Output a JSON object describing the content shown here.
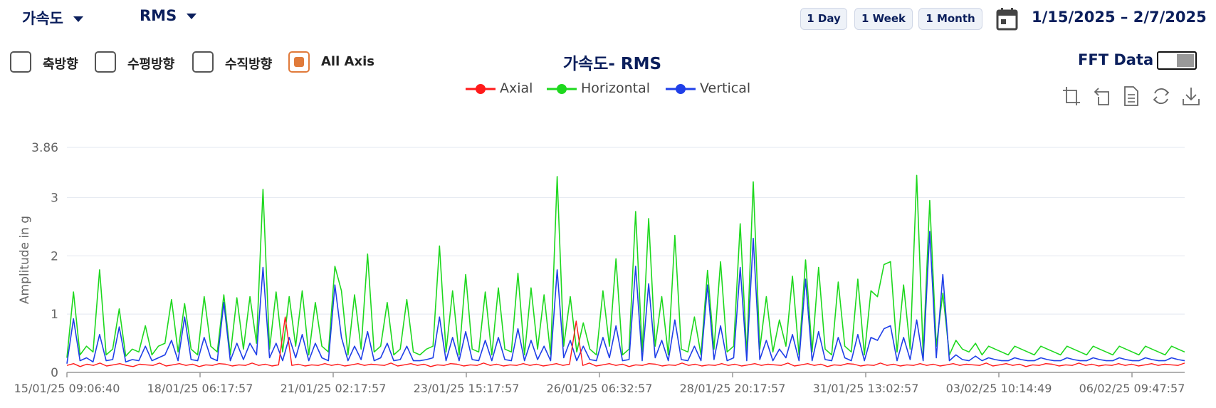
{
  "header": {
    "sensor_dropdown": "가속도",
    "metric_dropdown": "RMS",
    "range_buttons": [
      "1 Day",
      "1 Week",
      "1 Month"
    ],
    "date_range": "1/15/2025 – 2/7/2025"
  },
  "filters": [
    {
      "label": "축방향",
      "checked": false
    },
    {
      "label": "수평방향",
      "checked": false
    },
    {
      "label": "수직방향",
      "checked": false
    },
    {
      "label": "All Axis",
      "checked": true
    }
  ],
  "fft": {
    "label": "FFT Data",
    "enabled": false
  },
  "toolbar_icons": [
    "zoom-in-icon",
    "zoom-reset-icon",
    "data-view-icon",
    "restore-icon",
    "download-icon"
  ],
  "colors": {
    "axial": "#ff1a1a",
    "horizontal": "#1ed81e",
    "vertical": "#1f3fe8",
    "accent": "#e07a3a",
    "navy": "#0b1f5c"
  },
  "chart_data": {
    "type": "line",
    "title": "가속도- RMS",
    "xlabel": "",
    "ylabel": "Amplitude in g",
    "ylim": [
      0,
      3.86
    ],
    "yticks": [
      0,
      1,
      2,
      3,
      3.86
    ],
    "yticklabels": [
      "0",
      "1",
      "2",
      "3",
      "3.86"
    ],
    "xticklabels": [
      "15/01/25 09:06:40",
      "18/01/25 06:17:57",
      "21/01/25 02:17:57",
      "23/01/25 15:17:57",
      "26/01/25 06:32:57",
      "28/01/25 20:17:57",
      "31/01/25 13:02:57",
      "03/02/25 10:14:49",
      "06/02/25 09:47:57"
    ],
    "grid": true,
    "legend_position": "top-center",
    "series": [
      {
        "name": "Axial",
        "values": [
          0.12,
          0.15,
          0.1,
          0.14,
          0.12,
          0.16,
          0.11,
          0.13,
          0.15,
          0.12,
          0.1,
          0.14,
          0.13,
          0.12,
          0.16,
          0.11,
          0.13,
          0.15,
          0.12,
          0.14,
          0.1,
          0.13,
          0.12,
          0.15,
          0.14,
          0.11,
          0.13,
          0.12,
          0.16,
          0.12,
          0.14,
          0.11,
          0.13,
          0.95,
          0.12,
          0.14,
          0.11,
          0.13,
          0.12,
          0.15,
          0.12,
          0.14,
          0.11,
          0.13,
          0.15,
          0.12,
          0.14,
          0.13,
          0.12,
          0.16,
          0.11,
          0.13,
          0.15,
          0.12,
          0.14,
          0.1,
          0.13,
          0.12,
          0.15,
          0.14,
          0.11,
          0.13,
          0.12,
          0.16,
          0.12,
          0.14,
          0.11,
          0.13,
          0.12,
          0.15,
          0.12,
          0.14,
          0.11,
          0.13,
          0.15,
          0.12,
          0.14,
          0.88,
          0.12,
          0.16,
          0.11,
          0.13,
          0.15,
          0.12,
          0.14,
          0.1,
          0.13,
          0.12,
          0.15,
          0.14,
          0.11,
          0.13,
          0.12,
          0.16,
          0.12,
          0.14,
          0.11,
          0.13,
          0.12,
          0.15,
          0.12,
          0.14,
          0.11,
          0.13,
          0.15,
          0.12,
          0.14,
          0.13,
          0.12,
          0.16,
          0.11,
          0.13,
          0.15,
          0.12,
          0.14,
          0.1,
          0.13,
          0.12,
          0.15,
          0.14,
          0.11,
          0.13,
          0.12,
          0.16,
          0.12,
          0.14,
          0.11,
          0.13,
          0.12,
          0.15,
          0.12,
          0.14,
          0.11,
          0.13,
          0.15,
          0.12,
          0.14,
          0.13,
          0.12,
          0.16,
          0.11,
          0.13,
          0.15,
          0.12,
          0.14,
          0.1,
          0.13,
          0.12,
          0.15,
          0.14,
          0.11,
          0.13,
          0.12,
          0.16,
          0.12,
          0.14,
          0.11,
          0.13,
          0.12,
          0.15,
          0.12,
          0.14,
          0.11,
          0.13,
          0.15,
          0.12,
          0.14,
          0.13,
          0.12,
          0.16
        ]
      },
      {
        "name": "Horizontal",
        "values": [
          0.25,
          1.38,
          0.3,
          0.45,
          0.35,
          1.76,
          0.3,
          0.4,
          1.09,
          0.28,
          0.4,
          0.35,
          0.8,
          0.3,
          0.45,
          0.5,
          1.25,
          0.35,
          1.18,
          0.4,
          0.3,
          1.3,
          0.45,
          0.35,
          1.33,
          0.3,
          1.28,
          0.4,
          1.3,
          0.5,
          3.14,
          0.4,
          1.38,
          0.35,
          1.3,
          0.45,
          1.4,
          0.3,
          1.2,
          0.45,
          0.35,
          1.82,
          1.4,
          0.3,
          1.33,
          0.4,
          2.03,
          0.35,
          0.45,
          1.2,
          0.3,
          0.4,
          1.25,
          0.35,
          0.3,
          0.4,
          0.45,
          2.17,
          0.35,
          1.4,
          0.3,
          1.68,
          0.4,
          0.35,
          1.38,
          0.3,
          1.45,
          0.4,
          0.35,
          1.7,
          0.3,
          1.45,
          0.4,
          1.33,
          0.3,
          3.36,
          0.45,
          1.3,
          0.35,
          0.85,
          0.4,
          0.3,
          1.4,
          0.45,
          1.95,
          0.3,
          0.4,
          2.76,
          0.35,
          2.64,
          0.45,
          1.3,
          0.3,
          2.35,
          0.4,
          0.35,
          0.95,
          0.3,
          1.75,
          0.4,
          1.9,
          0.35,
          0.45,
          2.55,
          0.3,
          3.27,
          0.4,
          1.3,
          0.35,
          0.9,
          0.45,
          1.65,
          0.3,
          1.93,
          0.35,
          1.8,
          0.4,
          0.3,
          1.55,
          0.45,
          0.35,
          1.6,
          0.3,
          1.4,
          1.3,
          1.85,
          1.9,
          0.35,
          1.5,
          0.4,
          3.38,
          0.3,
          2.95,
          0.45,
          1.36,
          0.3,
          0.55,
          0.4,
          0.35,
          0.5,
          0.3,
          0.45,
          0.4,
          0.35,
          0.3,
          0.45,
          0.4,
          0.35,
          0.3,
          0.45,
          0.4,
          0.35,
          0.3,
          0.45,
          0.4,
          0.35,
          0.3,
          0.45,
          0.4,
          0.35,
          0.3,
          0.45,
          0.4,
          0.35,
          0.3,
          0.45,
          0.4,
          0.35,
          0.3,
          0.45,
          0.4,
          0.35
        ]
      },
      {
        "name": "Vertical",
        "values": [
          0.15,
          0.92,
          0.2,
          0.25,
          0.18,
          0.65,
          0.2,
          0.22,
          0.78,
          0.18,
          0.22,
          0.2,
          0.45,
          0.2,
          0.25,
          0.3,
          0.55,
          0.2,
          0.95,
          0.22,
          0.2,
          0.6,
          0.25,
          0.2,
          1.2,
          0.2,
          0.5,
          0.22,
          0.5,
          0.3,
          1.8,
          0.25,
          0.5,
          0.2,
          0.6,
          0.25,
          0.65,
          0.2,
          0.5,
          0.25,
          0.2,
          1.5,
          0.6,
          0.2,
          0.45,
          0.22,
          0.7,
          0.2,
          0.25,
          0.5,
          0.2,
          0.22,
          0.45,
          0.2,
          0.2,
          0.22,
          0.25,
          0.95,
          0.2,
          0.6,
          0.2,
          0.7,
          0.22,
          0.2,
          0.55,
          0.2,
          0.6,
          0.22,
          0.2,
          0.75,
          0.2,
          0.55,
          0.22,
          0.45,
          0.2,
          1.76,
          0.25,
          0.55,
          0.2,
          0.45,
          0.22,
          0.2,
          0.6,
          0.25,
          0.8,
          0.2,
          0.22,
          1.82,
          0.2,
          1.52,
          0.25,
          0.55,
          0.2,
          0.9,
          0.22,
          0.2,
          0.45,
          0.2,
          1.5,
          0.22,
          0.8,
          0.2,
          0.25,
          1.8,
          0.2,
          2.3,
          0.22,
          0.55,
          0.2,
          0.4,
          0.25,
          0.65,
          0.2,
          1.6,
          0.2,
          0.7,
          0.22,
          0.2,
          0.6,
          0.25,
          0.2,
          0.65,
          0.2,
          0.6,
          0.55,
          0.75,
          0.8,
          0.2,
          0.6,
          0.22,
          0.9,
          0.2,
          2.42,
          0.25,
          1.68,
          0.2,
          0.3,
          0.22,
          0.2,
          0.28,
          0.2,
          0.25,
          0.22,
          0.2,
          0.2,
          0.25,
          0.22,
          0.2,
          0.2,
          0.25,
          0.22,
          0.2,
          0.2,
          0.25,
          0.22,
          0.2,
          0.2,
          0.25,
          0.22,
          0.2,
          0.2,
          0.25,
          0.22,
          0.2,
          0.2,
          0.25,
          0.22,
          0.2,
          0.2,
          0.25,
          0.22,
          0.2
        ]
      }
    ]
  }
}
